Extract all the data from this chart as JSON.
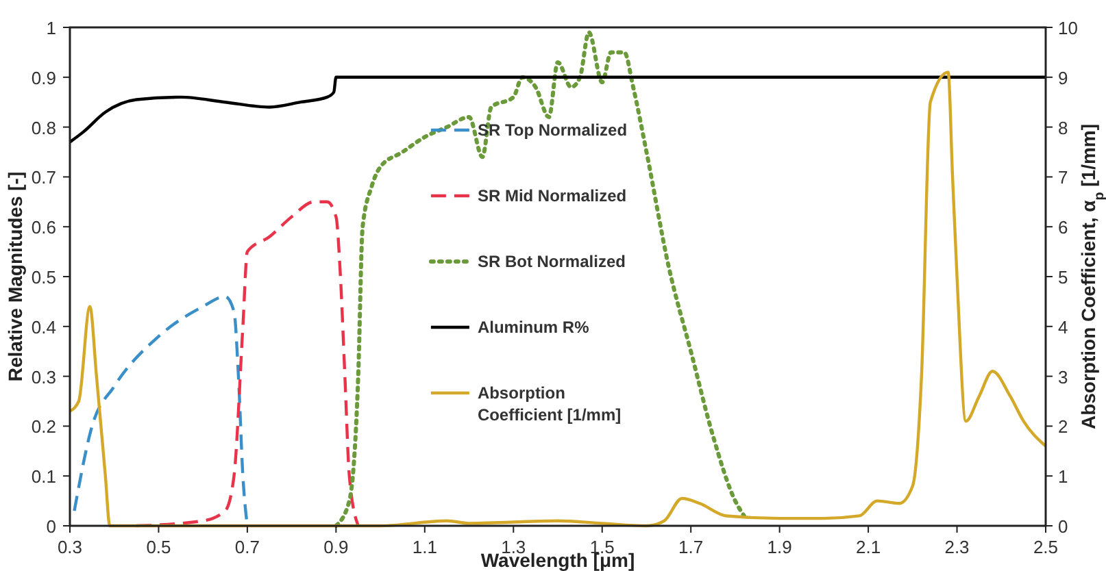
{
  "chart_data": {
    "type": "line",
    "xlabel": "Wavelength [μm]",
    "ylabel": "Relative Magnitudes [-]",
    "y2label": "Absorption Coefficient, α$_{p}$ [1/mm]",
    "xlim": [
      0.3,
      2.5
    ],
    "xticks": [
      0.3,
      0.5,
      0.7,
      0.9,
      1.1,
      1.3,
      1.5,
      1.7,
      1.9,
      2.1,
      2.3,
      2.5
    ],
    "ylim": [
      0,
      1
    ],
    "yticks": [
      0,
      0.1,
      0.2,
      0.3,
      0.4,
      0.5,
      0.6,
      0.7,
      0.8,
      0.9,
      1
    ],
    "y2lim": [
      0,
      10
    ],
    "y2ticks": [
      0,
      1,
      2,
      3,
      4,
      5,
      6,
      7,
      8,
      9,
      10
    ],
    "grid": false,
    "legend": "center",
    "marker": "none",
    "series": [
      {
        "name": "SR Top Normalized",
        "color": "#3a8fc8",
        "line_style": "dashed",
        "x": [
          0.31,
          0.35,
          0.4,
          0.5,
          0.6,
          0.65,
          0.67,
          0.68,
          0.69,
          0.7
        ],
        "values": [
          0.03,
          0.2,
          0.28,
          0.38,
          0.44,
          0.46,
          0.43,
          0.3,
          0.1,
          0
        ]
      },
      {
        "name": "SR Mid Normalized",
        "color": "#e8344a",
        "line_style": "dashed",
        "x": [
          0.45,
          0.6,
          0.65,
          0.67,
          0.69,
          0.7,
          0.75,
          0.8,
          0.85,
          0.88,
          0.9,
          0.91,
          0.92,
          0.93,
          0.95
        ],
        "values": [
          0,
          0.01,
          0.03,
          0.1,
          0.4,
          0.55,
          0.58,
          0.62,
          0.65,
          0.65,
          0.62,
          0.5,
          0.3,
          0.1,
          0
        ]
      },
      {
        "name": "SR Bot Normalized",
        "color": "#6a9a3a",
        "line_style": "dotted",
        "x": [
          0.9,
          0.93,
          0.95,
          0.96,
          0.98,
          1.0,
          1.05,
          1.1,
          1.15,
          1.2,
          1.23,
          1.25,
          1.3,
          1.32,
          1.35,
          1.38,
          1.4,
          1.43,
          1.45,
          1.47,
          1.5,
          1.52,
          1.55,
          1.57,
          1.6,
          1.65,
          1.7,
          1.75,
          1.8,
          1.82
        ],
        "values": [
          0,
          0.05,
          0.3,
          0.6,
          0.68,
          0.72,
          0.75,
          0.78,
          0.8,
          0.82,
          0.74,
          0.84,
          0.86,
          0.9,
          0.88,
          0.82,
          0.93,
          0.88,
          0.9,
          0.99,
          0.89,
          0.95,
          0.95,
          0.88,
          0.75,
          0.52,
          0.35,
          0.18,
          0.05,
          0.02
        ]
      },
      {
        "name": "Aluminum R%",
        "color": "#000000",
        "line_style": "solid",
        "x": [
          0.3,
          0.33,
          0.38,
          0.45,
          0.55,
          0.65,
          0.75,
          0.82,
          0.88,
          0.895,
          0.9,
          1.5,
          2.5
        ],
        "values": [
          0.77,
          0.79,
          0.83,
          0.855,
          0.86,
          0.85,
          0.84,
          0.85,
          0.86,
          0.87,
          0.9,
          0.9,
          0.9
        ]
      },
      {
        "name": "Absorption Coefficient [1/mm]",
        "color": "#d4a92a",
        "line_style": "solid",
        "axis": "y2",
        "x": [
          0.3,
          0.32,
          0.345,
          0.36,
          0.38,
          0.39,
          1.0,
          1.15,
          1.2,
          1.4,
          1.5,
          1.6,
          1.64,
          1.68,
          1.72,
          1.78,
          1.9,
          2.0,
          2.08,
          2.12,
          2.17,
          2.2,
          2.22,
          2.24,
          2.28,
          2.29,
          2.3,
          2.32,
          2.35,
          2.38,
          2.42,
          2.45,
          2.5
        ],
        "values": [
          2.3,
          2.5,
          4.4,
          3,
          1,
          0,
          0,
          0.1,
          0.05,
          0.1,
          0.05,
          0,
          0.1,
          0.55,
          0.45,
          0.2,
          0.15,
          0.15,
          0.2,
          0.5,
          0.45,
          0.8,
          3,
          8.5,
          9.1,
          7,
          5,
          2.1,
          2.6,
          3.1,
          2.6,
          2.1,
          1.6
        ]
      }
    ]
  }
}
